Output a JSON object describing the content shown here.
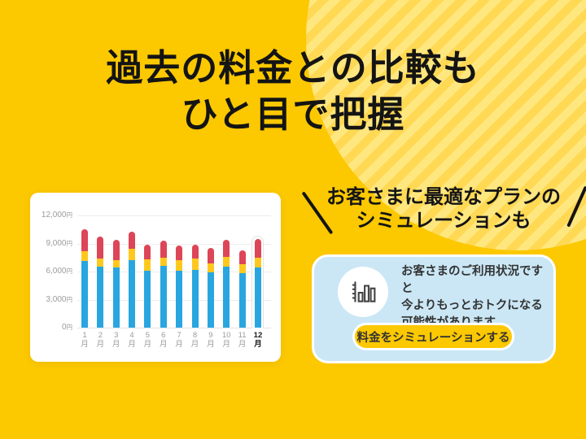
{
  "header": {
    "title_line1": "過去の料金との比較も",
    "title_line2": "ひと目で把握"
  },
  "promo": {
    "line1": "お客さまに最適なプランの",
    "line2": "シミュレーションも"
  },
  "sim_card": {
    "icon": "bar-chart-icon",
    "message_line1": "お客さまのご利用状況ですと",
    "message_line2": "今よりもっとおトクになる",
    "message_line3": "可能性があります",
    "button_label": "料金をシミュレーションする"
  },
  "colors": {
    "page_background": "#FCC800",
    "stripe_dark": "#FFD954",
    "stripe_light": "#FFE780",
    "card_background": "#FFFFFF",
    "sim_card_background": "#CBE7F5",
    "button_background": "#FCC800"
  },
  "chart_data": {
    "type": "bar",
    "stacked": true,
    "title": "",
    "xlabel": "",
    "ylabel": "",
    "categories": [
      "1",
      "2",
      "3",
      "4",
      "5",
      "6",
      "7",
      "8",
      "9",
      "10",
      "11",
      "12"
    ],
    "category_suffix": "月",
    "highlighted_category": "12",
    "series": [
      {
        "name": "base-charge",
        "color": "#29A6E0",
        "values": [
          7100,
          6500,
          6400,
          7200,
          6100,
          6600,
          6100,
          6200,
          5900,
          6500,
          5800,
          6400
        ]
      },
      {
        "name": "mid-charge",
        "color": "#FFC81E",
        "values": [
          1100,
          900,
          800,
          1200,
          1200,
          900,
          1100,
          1200,
          1000,
          1100,
          1000,
          1100
        ]
      },
      {
        "name": "top-charge",
        "color": "#DD4558",
        "values": [
          2300,
          2300,
          2200,
          1900,
          1600,
          1800,
          1600,
          1500,
          1600,
          1800,
          1500,
          2000
        ]
      }
    ],
    "totals": [
      10500,
      9700,
      9400,
      10300,
      8900,
      9300,
      8800,
      8900,
      8500,
      9400,
      8300,
      9500
    ],
    "ylim": [
      0,
      12000
    ],
    "y_ticks": [
      0,
      3000,
      6000,
      9000,
      12000
    ],
    "y_tick_labels": [
      "0",
      "3,000",
      "6,000",
      "9,000",
      "12,000"
    ],
    "y_unit": "円",
    "grid": true,
    "legend": false
  }
}
